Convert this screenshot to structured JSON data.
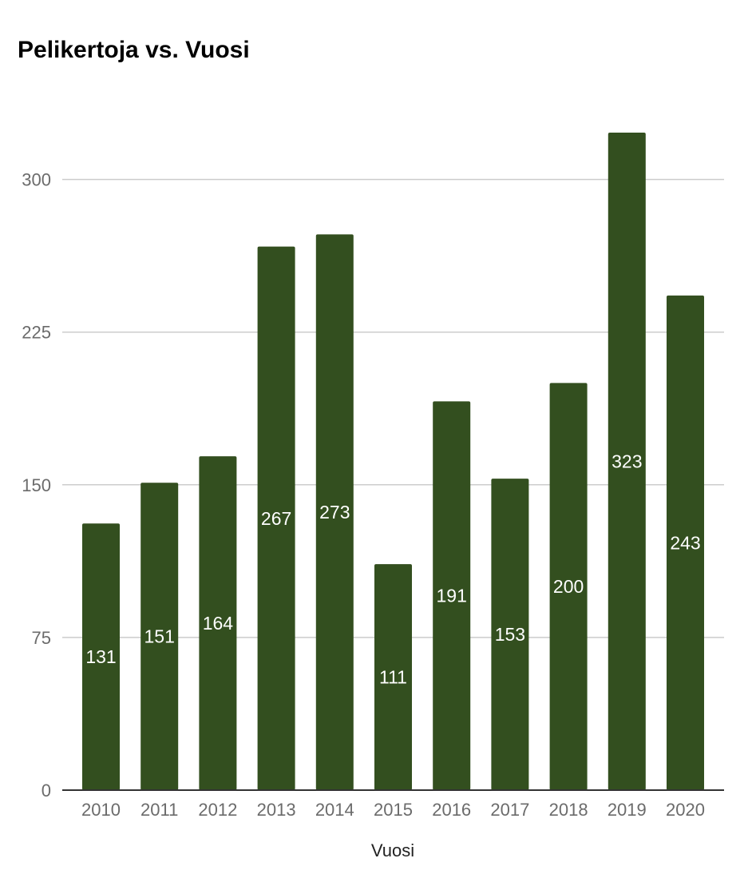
{
  "chart_data": {
    "type": "bar",
    "title": "Pelikertoja vs. Vuosi",
    "xlabel": "Vuosi",
    "ylabel": "",
    "categories": [
      "2010",
      "2011",
      "2012",
      "2013",
      "2014",
      "2015",
      "2016",
      "2017",
      "2018",
      "2019",
      "2020"
    ],
    "values": [
      131,
      151,
      164,
      267,
      273,
      111,
      191,
      153,
      200,
      323,
      243
    ],
    "data_labels": [
      "131",
      "151",
      "164",
      "267",
      "273",
      "111",
      "191",
      "153",
      "200",
      "323",
      "243"
    ],
    "ylim": [
      0,
      325
    ],
    "yticks": [
      0,
      75,
      150,
      225,
      300
    ],
    "ytick_labels": [
      "0",
      "75",
      "150",
      "225",
      "300"
    ],
    "grid": true,
    "legend": "none",
    "bar_color": "#334f1f",
    "label_color": "#ffffff"
  }
}
